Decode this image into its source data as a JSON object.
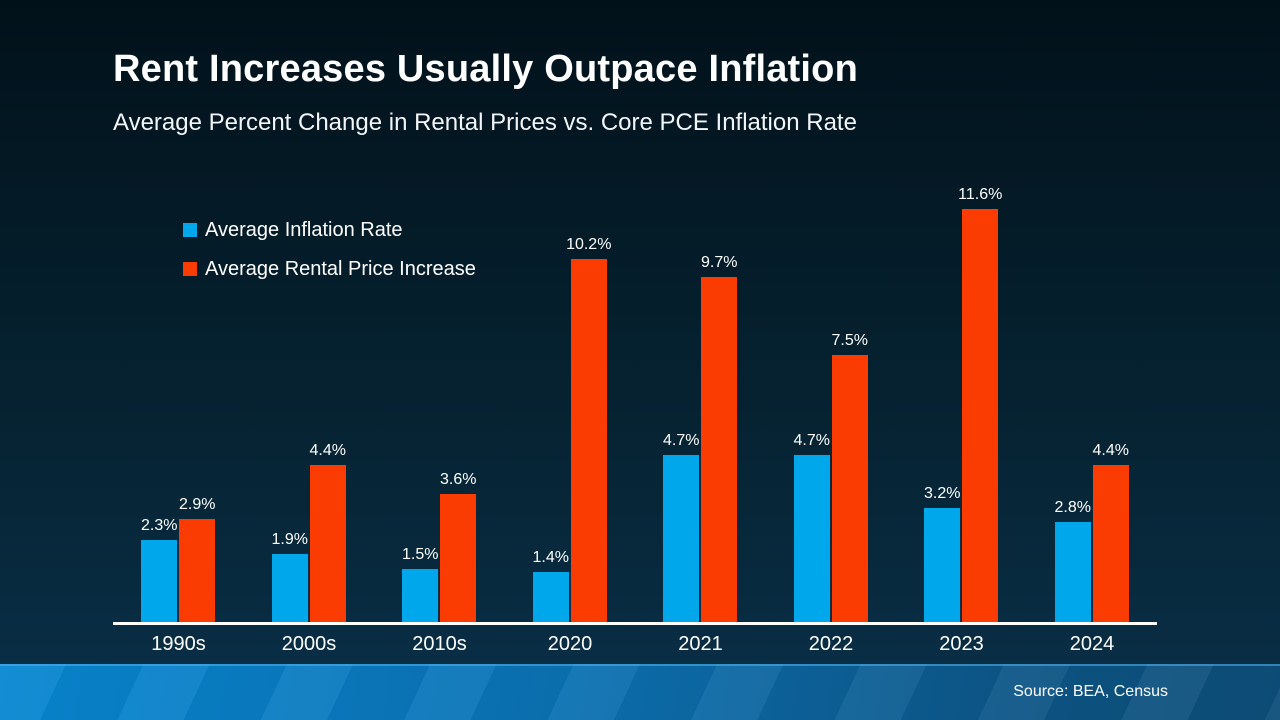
{
  "slide": {
    "title": "Rent Increases Usually Outpace Inflation",
    "subtitle": "Average Percent Change in Rental Prices vs. Core PCE Inflation Rate",
    "source": "Source: BEA, Census"
  },
  "colors": {
    "inflation_blue": "#00a7ea",
    "rent_red": "#fa3c02",
    "axis_line": "#ffffff",
    "background_top": "#01111a",
    "background_bottom": "#0a3049",
    "footer_left": "#0787d2",
    "footer_right": "#0d4e79"
  },
  "chart_data": {
    "type": "bar",
    "title": "Rent Increases Usually Outpace Inflation",
    "subtitle": "Average Percent Change in Rental Prices vs. Core PCE Inflation Rate",
    "categories": [
      "1990s",
      "2000s",
      "2010s",
      "2020",
      "2021",
      "2022",
      "2023",
      "2024"
    ],
    "series": [
      {
        "name": "Average Inflation Rate",
        "color": "#00a7ea",
        "values": [
          2.3,
          1.9,
          1.5,
          1.4,
          4.7,
          4.7,
          3.2,
          2.8
        ],
        "labels": [
          "2.3%",
          "1.9%",
          "1.5%",
          "1.4%",
          "4.7%",
          "4.7%",
          "3.2%",
          "2.8%"
        ]
      },
      {
        "name": "Average Rental Price Increase",
        "color": "#fa3c02",
        "values": [
          2.9,
          4.4,
          3.6,
          10.2,
          9.7,
          7.5,
          11.6,
          4.4
        ],
        "labels": [
          "2.9%",
          "4.4%",
          "3.6%",
          "10.2%",
          "9.7%",
          "7.5%",
          "11.6%",
          "4.4%"
        ]
      }
    ],
    "ylim": [
      0,
      12
    ],
    "grid": false,
    "y_axis_visible": false,
    "legend_position": "top-left",
    "value_labels": true,
    "source": "Source: BEA, Census"
  }
}
